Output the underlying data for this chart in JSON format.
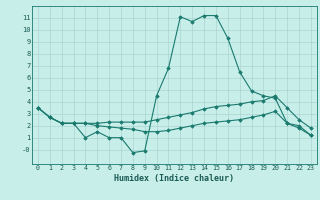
{
  "title": "",
  "xlabel": "Humidex (Indice chaleur)",
  "bg_color": "#c8eeea",
  "line_color": "#1a7a6e",
  "grid_color": "#aad4cf",
  "xlim": [
    -0.5,
    23.5
  ],
  "ylim": [
    -1.2,
    12.0
  ],
  "xticks": [
    0,
    1,
    2,
    3,
    4,
    5,
    6,
    7,
    8,
    9,
    10,
    11,
    12,
    13,
    14,
    15,
    16,
    17,
    18,
    19,
    20,
    21,
    22,
    23
  ],
  "yticks": [
    0,
    1,
    2,
    3,
    4,
    5,
    6,
    7,
    8,
    9,
    10,
    11
  ],
  "ytick_labels": [
    "-0",
    "1",
    "2",
    "3",
    "4",
    "5",
    "6",
    "7",
    "8",
    "9",
    "10",
    "11"
  ],
  "series1_x": [
    0,
    1,
    2,
    3,
    4,
    5,
    6,
    7,
    8,
    9,
    10,
    11,
    12,
    13,
    14,
    15,
    16,
    17,
    18,
    19,
    20,
    21,
    22,
    23
  ],
  "series1_y": [
    3.5,
    2.7,
    2.2,
    2.2,
    1.0,
    1.5,
    1.0,
    1.0,
    -0.25,
    -0.1,
    4.5,
    6.8,
    11.1,
    10.7,
    11.2,
    11.2,
    9.3,
    6.5,
    4.9,
    4.5,
    4.3,
    2.2,
    2.0,
    1.2
  ],
  "series2_x": [
    0,
    1,
    2,
    3,
    4,
    5,
    6,
    7,
    8,
    9,
    10,
    11,
    12,
    13,
    14,
    15,
    16,
    17,
    18,
    19,
    20,
    21,
    22,
    23
  ],
  "series2_y": [
    3.5,
    2.7,
    2.2,
    2.2,
    2.2,
    2.2,
    2.3,
    2.3,
    2.3,
    2.3,
    2.5,
    2.7,
    2.9,
    3.1,
    3.4,
    3.6,
    3.7,
    3.8,
    4.0,
    4.1,
    4.5,
    3.5,
    2.5,
    1.8
  ],
  "series3_x": [
    0,
    1,
    2,
    3,
    4,
    5,
    6,
    7,
    8,
    9,
    10,
    11,
    12,
    13,
    14,
    15,
    16,
    17,
    18,
    19,
    20,
    21,
    22,
    23
  ],
  "series3_y": [
    3.5,
    2.7,
    2.2,
    2.2,
    2.2,
    2.0,
    1.9,
    1.8,
    1.7,
    1.5,
    1.5,
    1.6,
    1.8,
    2.0,
    2.2,
    2.3,
    2.4,
    2.5,
    2.7,
    2.9,
    3.2,
    2.2,
    1.8,
    1.2
  ]
}
